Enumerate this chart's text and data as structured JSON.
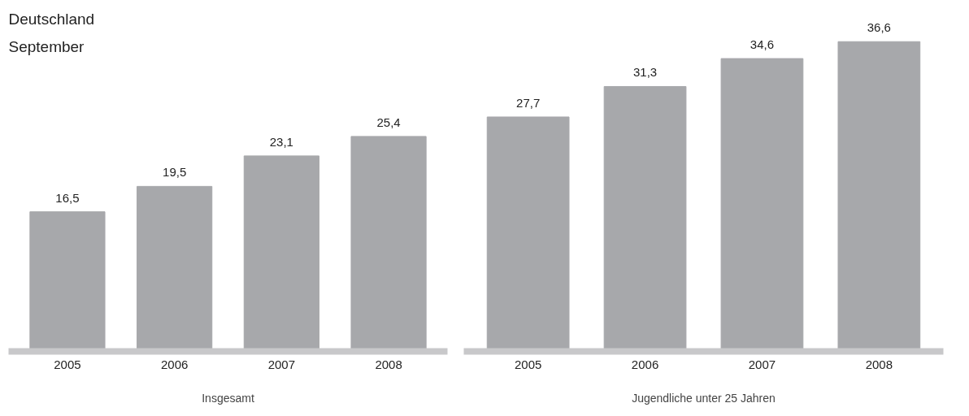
{
  "chart_data": [
    {
      "type": "bar",
      "subtitle": "Deutschland\nSeptember",
      "xlabel": "Insgesamt",
      "categories": [
        "2005",
        "2006",
        "2007",
        "2008"
      ],
      "values": [
        16.5,
        19.5,
        23.1,
        25.4
      ],
      "value_labels": [
        "16,5",
        "19,5",
        "23,1",
        "25,4"
      ],
      "color": "#a7a8ab",
      "grid": false
    },
    {
      "type": "bar",
      "xlabel": "Jugendliche unter 25 Jahren",
      "categories": [
        "2005",
        "2006",
        "2007",
        "2008"
      ],
      "values": [
        27.7,
        31.3,
        34.6,
        36.6
      ],
      "value_labels": [
        "27,7",
        "31,3",
        "34,6",
        "36,6"
      ],
      "color": "#a7a8ab",
      "grid": false
    }
  ]
}
